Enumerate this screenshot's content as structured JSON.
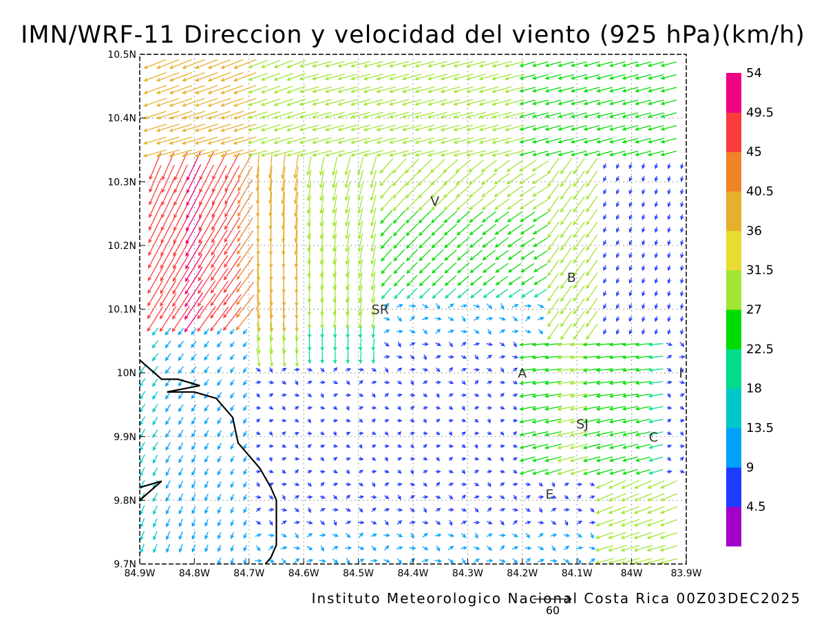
{
  "title": "IMN/WRF-11 Direccion y velocidad del viento (925 hPa)(km/h)",
  "credit": "Instituto Meteorologico Nacional Costa Rica 00Z03DEC2025",
  "reference_vector": {
    "label": "60",
    "speed_kmh": 60
  },
  "colorbar": {
    "labels": [
      "4.5",
      "9",
      "13.5",
      "18",
      "22.5",
      "27",
      "31.5",
      "36",
      "40.5",
      "45",
      "49.5",
      "54"
    ],
    "colors": [
      "#a000c8",
      "#1e3cff",
      "#00a0ff",
      "#00c8c8",
      "#00dc8c",
      "#00dc00",
      "#a0e632",
      "#e6dc32",
      "#e6af2d",
      "#f08228",
      "#fa3c3c",
      "#f00082"
    ]
  },
  "places": [
    {
      "label": "V",
      "lon": -84.36,
      "lat": 10.27
    },
    {
      "label": "B",
      "lon": -84.11,
      "lat": 10.15
    },
    {
      "label": "SR",
      "lon": -84.46,
      "lat": 10.1
    },
    {
      "label": "A",
      "lon": -84.2,
      "lat": 10.0
    },
    {
      "label": "SJ",
      "lon": -84.09,
      "lat": 9.92
    },
    {
      "label": "C",
      "lon": -83.96,
      "lat": 9.9
    },
    {
      "label": "E",
      "lon": -84.15,
      "lat": 9.81
    },
    {
      "label": "I",
      "lon": -83.91,
      "lat": 10.0
    }
  ],
  "chart_data": {
    "type": "vector field (wind barbs/arrows)",
    "title": "IMN/WRF-11 Direccion y velocidad del viento (925 hPa)(km/h)",
    "level": "925 hPa",
    "units": "km/h",
    "xlim": [
      -84.9,
      -83.9
    ],
    "ylim": [
      9.7,
      10.5
    ],
    "x_ticks": [
      -84.9,
      -84.8,
      -84.7,
      -84.6,
      -84.5,
      -84.4,
      -84.3,
      -84.2,
      -84.1,
      -84.0,
      -83.9
    ],
    "x_tick_labels": [
      "84.9W",
      "84.8W",
      "84.7W",
      "84.6W",
      "84.5W",
      "84.4W",
      "84.3W",
      "84.2W",
      "84.1W",
      "84W",
      "83.9W"
    ],
    "y_ticks": [
      9.7,
      9.8,
      9.9,
      10.0,
      10.1,
      10.2,
      10.3,
      10.4,
      10.5
    ],
    "y_tick_labels": [
      "9.7N",
      "9.8N",
      "9.9N",
      "10N",
      "10.1N",
      "10.2N",
      "10.3N",
      "10.4N",
      "10.5N"
    ],
    "grid": "dotted",
    "legend": "right (colorbar)",
    "coastline": [
      [
        -84.9,
        10.02
      ],
      [
        -84.86,
        9.99
      ],
      [
        -84.83,
        9.99
      ],
      [
        -84.79,
        9.98
      ],
      [
        -84.85,
        9.97
      ],
      [
        -84.8,
        9.97
      ],
      [
        -84.76,
        9.96
      ],
      [
        -84.74,
        9.94
      ],
      [
        -84.73,
        9.93
      ],
      [
        -84.72,
        9.89
      ],
      [
        -84.7,
        9.87
      ],
      [
        -84.68,
        9.85
      ],
      [
        -84.66,
        9.82
      ],
      [
        -84.65,
        9.8
      ],
      [
        -84.65,
        9.73
      ],
      [
        -84.66,
        9.71
      ],
      [
        -84.67,
        9.7
      ]
    ],
    "coastline2": [
      [
        -84.9,
        9.82
      ],
      [
        -84.86,
        9.83
      ],
      [
        -84.9,
        9.8
      ]
    ],
    "wind_regions": [
      {
        "region": "north band 10.35N-10.5N",
        "direction_to_deg": 255,
        "speed_kmh": 31
      },
      {
        "region": "northwest slope 84.9W-84.7W 10.1N-10.3N",
        "direction_to_deg": 215,
        "speed_kmh": 45
      },
      {
        "region": "central corridor 84.6W-84.5W 10.05N-10.3N",
        "direction_to_deg": 185,
        "speed_kmh": 33
      },
      {
        "region": "Valle Central 84.5W-84.2W 9.7N-10.1N",
        "direction_to_deg": 160,
        "speed_kmh": 6
      },
      {
        "region": "southwest 84.9W-84.7W 9.7N-10.0N",
        "direction_to_deg": 210,
        "speed_kmh": 12
      },
      {
        "region": "east jet 84.2W-84.0W 9.85N-10.0N",
        "direction_to_deg": 260,
        "speed_kmh": 28
      },
      {
        "region": "southeast 84.05W-83.9W 9.7N-9.85N",
        "direction_to_deg": 250,
        "speed_kmh": 30
      }
    ]
  }
}
